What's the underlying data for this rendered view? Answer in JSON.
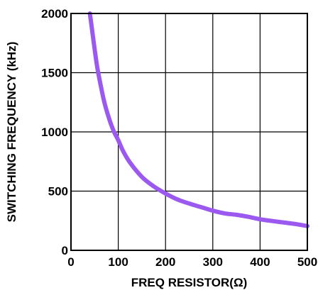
{
  "chart_data": {
    "type": "line",
    "title": "",
    "xlabel": "FREQ RESISTOR(Ω)",
    "ylabel": "SWITCHING FREQUENCY (kHz)",
    "xlim": [
      0,
      500
    ],
    "ylim": [
      0,
      2000
    ],
    "xticks": [
      0,
      100,
      200,
      300,
      400,
      500
    ],
    "yticks": [
      0,
      500,
      1000,
      1500,
      2000
    ],
    "xtick_labels": [
      "0",
      "100",
      "200",
      "300",
      "400",
      "500"
    ],
    "ytick_labels": [
      "0",
      "500",
      "1000",
      "1500",
      "2000"
    ],
    "grid": true,
    "legend": "none",
    "series": [
      {
        "color": "#9b59f0",
        "x": [
          40,
          45,
          50,
          55,
          60,
          70,
          80,
          90,
          100,
          110,
          125,
          150,
          175,
          200,
          225,
          250,
          275,
          300,
          325,
          350,
          375,
          400,
          425,
          450,
          475,
          500
        ],
        "y": [
          2000,
          1850,
          1700,
          1560,
          1450,
          1260,
          1120,
          1010,
          930,
          840,
          740,
          620,
          540,
          480,
          430,
          395,
          365,
          335,
          312,
          300,
          283,
          262,
          248,
          235,
          222,
          205
        ]
      }
    ]
  }
}
